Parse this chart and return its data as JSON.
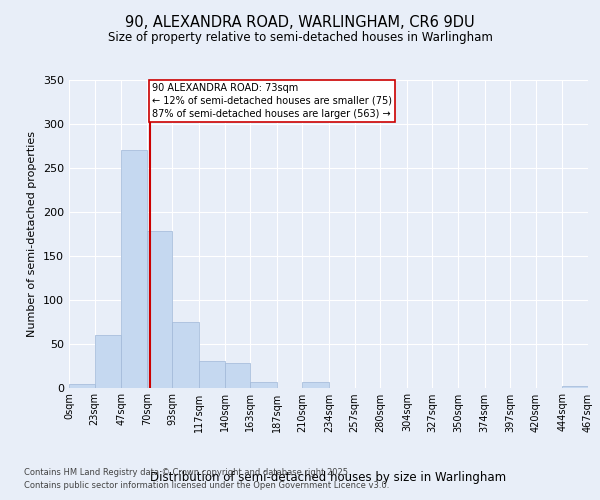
{
  "title1": "90, ALEXANDRA ROAD, WARLINGHAM, CR6 9DU",
  "title2": "Size of property relative to semi-detached houses in Warlingham",
  "xlabel": "Distribution of semi-detached houses by size in Warlingham",
  "ylabel": "Number of semi-detached properties",
  "bins": [
    "0sqm",
    "23sqm",
    "47sqm",
    "70sqm",
    "93sqm",
    "117sqm",
    "140sqm",
    "163sqm",
    "187sqm",
    "210sqm",
    "234sqm",
    "257sqm",
    "280sqm",
    "304sqm",
    "327sqm",
    "350sqm",
    "374sqm",
    "397sqm",
    "420sqm",
    "444sqm",
    "467sqm"
  ],
  "bin_edges": [
    0,
    23,
    47,
    70,
    93,
    117,
    140,
    163,
    187,
    210,
    234,
    257,
    280,
    304,
    327,
    350,
    374,
    397,
    420,
    444,
    467
  ],
  "values": [
    4,
    60,
    270,
    178,
    74,
    30,
    28,
    6,
    0,
    6,
    0,
    0,
    0,
    0,
    0,
    0,
    0,
    0,
    0,
    2
  ],
  "bar_color": "#c5d8f0",
  "bar_edge_color": "#a0b8d8",
  "property_size": 73,
  "property_line_color": "#cc0000",
  "annotation_line1": "90 ALEXANDRA ROAD: 73sqm",
  "annotation_line2": "← 12% of semi-detached houses are smaller (75)",
  "annotation_line3": "87% of semi-detached houses are larger (563) →",
  "annotation_box_color": "#ffffff",
  "annotation_box_edge": "#cc0000",
  "ylim": [
    0,
    350
  ],
  "yticks": [
    0,
    50,
    100,
    150,
    200,
    250,
    300,
    350
  ],
  "bg_color": "#e8eef8",
  "grid_color": "#ffffff",
  "footer1": "Contains HM Land Registry data © Crown copyright and database right 2025.",
  "footer2": "Contains public sector information licensed under the Open Government Licence v3.0."
}
